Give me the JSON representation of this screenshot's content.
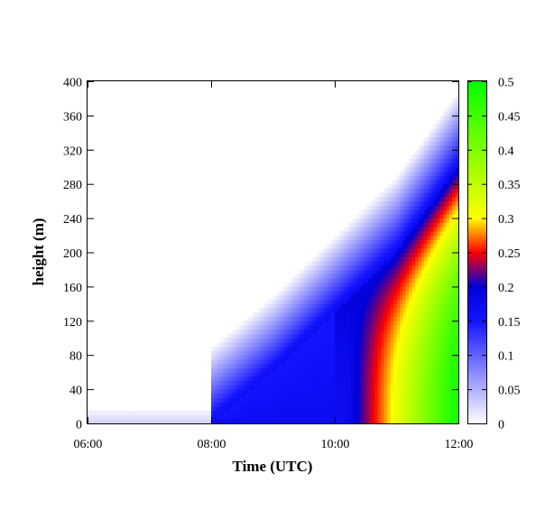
{
  "chart_data": {
    "type": "heatmap",
    "title": "",
    "xlabel": "Time (UTC)",
    "ylabel": "height (m)",
    "x_ticks": [
      "06:00",
      "08:00",
      "10:00",
      "12:00"
    ],
    "x_range_hours": [
      6,
      12
    ],
    "y_ticks": [
      0,
      40,
      80,
      120,
      160,
      200,
      240,
      280,
      320,
      360,
      400
    ],
    "y_range": [
      0,
      400
    ],
    "colorbar": {
      "range": [
        0,
        0.5
      ],
      "ticks": [
        "0",
        "0.05",
        "0.1",
        "0.15",
        "0.2",
        "0.25",
        "0.3",
        "0.35",
        "0.4",
        "0.45",
        "0.5"
      ],
      "stops": [
        {
          "value": 0.0,
          "color": "#ffffff"
        },
        {
          "value": 0.15,
          "color": "#1414ff"
        },
        {
          "value": 0.2,
          "color": "#0000d8"
        },
        {
          "value": 0.25,
          "color": "#ff0000"
        },
        {
          "value": 0.3,
          "color": "#ffff00"
        },
        {
          "value": 0.5,
          "color": "#00ff00"
        }
      ]
    },
    "field_description": {
      "front_height_m_by_hour": [
        [
          8.0,
          0
        ],
        [
          9.0,
          60
        ],
        [
          10.0,
          130
        ],
        [
          11.0,
          200
        ],
        [
          12.0,
          300
        ]
      ],
      "surface_band_height_m": 20
    },
    "grid": false
  }
}
